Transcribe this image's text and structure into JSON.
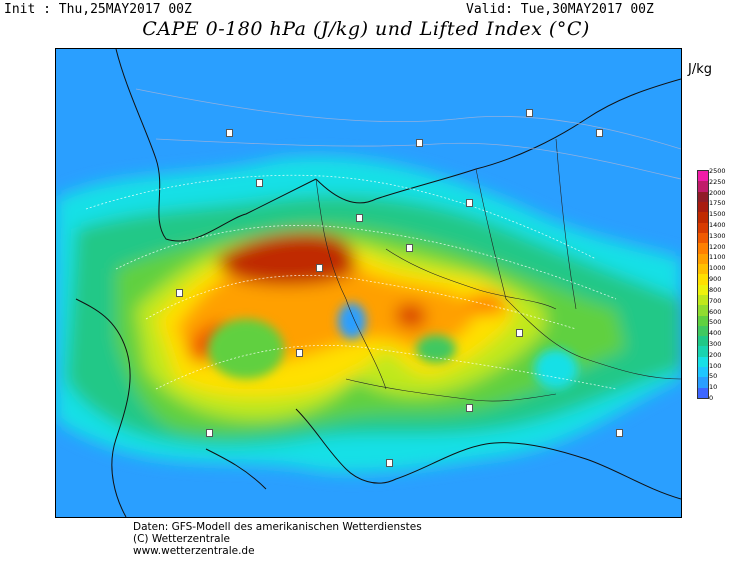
{
  "header": {
    "init": "Init : Thu,25MAY2017 00Z",
    "valid": "Valid: Tue,30MAY2017 00Z",
    "title": "CAPE 0-180 hPa (J/kg) und Lifted Index (°C)",
    "unit": "J/kg"
  },
  "legend": {
    "levels": [
      "0",
      "10",
      "50",
      "100",
      "200",
      "300",
      "400",
      "500",
      "600",
      "700",
      "800",
      "900",
      "1000",
      "1100",
      "1200",
      "1300",
      "1400",
      "1500",
      "1750",
      "2000",
      "2250",
      "2500"
    ],
    "colors": [
      "#3d66ff",
      "#2a9fff",
      "#1fc6ff",
      "#18e0e6",
      "#19d4b0",
      "#20c887",
      "#40c860",
      "#60d040",
      "#90dc30",
      "#c0e81c",
      "#eef20c",
      "#ffe000",
      "#ffc000",
      "#ffa000",
      "#ff8000",
      "#f05a00",
      "#d83c00",
      "#c02a00",
      "#a81c10",
      "#901c28",
      "#c01c6a",
      "#f01ca8"
    ]
  },
  "footer": {
    "line1": "Daten: GFS-Modell des amerikanischen Wetterdienstes",
    "line2": "(C) Wetterzentrale",
    "line3": "www.wetterzentrale.de"
  }
}
